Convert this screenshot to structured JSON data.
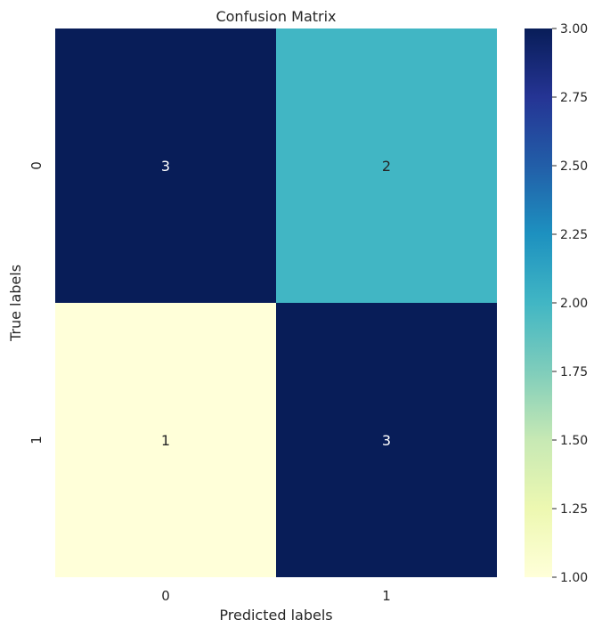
{
  "chart_data": {
    "type": "heatmap",
    "title": "Confusion Matrix",
    "xlabel": "Predicted labels",
    "ylabel": "True labels",
    "x_categories": [
      "0",
      "1"
    ],
    "y_categories": [
      "0",
      "1"
    ],
    "values": [
      [
        3,
        2
      ],
      [
        1,
        3
      ]
    ],
    "colormap": "YlGnBu",
    "colorbar": {
      "min": 1.0,
      "max": 3.0,
      "ticks": [
        "1.00",
        "1.25",
        "1.50",
        "1.75",
        "2.00",
        "2.25",
        "2.50",
        "2.75",
        "3.00"
      ]
    },
    "colors": {
      "low": "#ffffd9",
      "high": "#081d58",
      "cell_text_light": "#ffffff",
      "cell_text_dark": "#262626",
      "axis_text": "#262626"
    },
    "grid": false,
    "legend": "colorbar-right"
  }
}
